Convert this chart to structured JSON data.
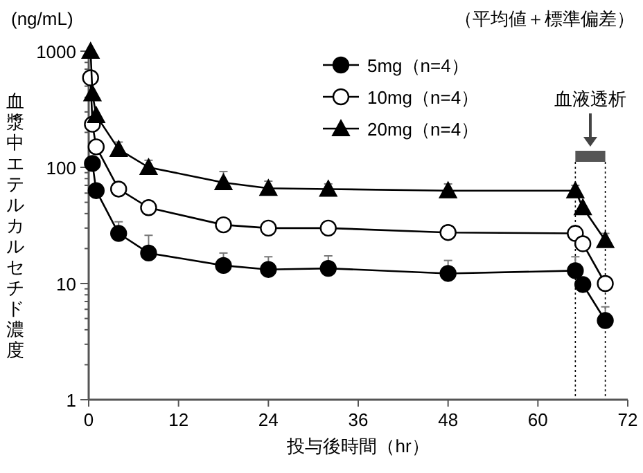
{
  "chart_data": {
    "type": "line",
    "xlabel": "投与後時間（hr）",
    "ylabel": "血漿中エテルカルセチド濃度",
    "annotations": [
      "(ng/mL)",
      "（平均値＋標準偏差）",
      "血液透析"
    ],
    "x": [
      0.25,
      0.5,
      1,
      4,
      8,
      18,
      24,
      32,
      48,
      65,
      66,
      69
    ],
    "series": [
      {
        "name": "5mg（n=4）",
        "color": "#000000",
        "marker": "circle",
        "values": [
          null,
          108,
          63,
          27,
          18.3,
          14.3,
          13.2,
          13.5,
          12.2,
          12.9,
          9.8,
          4.8
        ],
        "errors": [
          null,
          null,
          null,
          [
            27,
            34
          ],
          [
            18.3,
            26
          ],
          [
            14.3,
            18.3
          ],
          [
            13.2,
            17
          ],
          [
            13.5,
            17.3
          ],
          [
            12.2,
            15.8
          ],
          [
            12.9,
            17
          ],
          null,
          [
            4.8,
            6.3
          ]
        ]
      },
      {
        "name": "10mg（n=4）",
        "color": "#000000",
        "marker": "circle-open",
        "values": [
          590,
          235,
          150,
          65,
          45,
          32,
          30,
          30,
          27.5,
          27,
          22,
          10
        ],
        "errors": [
          null,
          null,
          null,
          null,
          null,
          null,
          null,
          null,
          null,
          [
            27,
            31
          ],
          null,
          [
            10,
            11.5
          ]
        ]
      },
      {
        "name": "20mg（n=4）",
        "color": "#000000",
        "marker": "triangle",
        "values": [
          1000,
          430,
          280,
          143,
          100,
          74,
          66,
          65,
          63,
          63,
          45,
          23.5
        ],
        "errors": [
          null,
          null,
          null,
          [
            143,
            165
          ],
          [
            100,
            115
          ],
          [
            74,
            92
          ],
          [
            66,
            76
          ],
          [
            65,
            72
          ],
          [
            63,
            72
          ],
          [
            63,
            70
          ],
          null,
          [
            23.5,
            27
          ]
        ]
      }
    ],
    "ref_lines": [
      {
        "axis": "x",
        "value": 65,
        "line_style": "dotted"
      },
      {
        "axis": "x",
        "value": 69,
        "line_style": "dotted"
      }
    ],
    "log": "y",
    "xlim": [
      0,
      72
    ],
    "ylim": [
      1,
      1000
    ],
    "xticks": [
      0,
      12,
      24,
      36,
      48,
      60,
      72
    ],
    "yticks": [
      1,
      10,
      100,
      1000
    ],
    "legend": "top",
    "grid": false
  }
}
